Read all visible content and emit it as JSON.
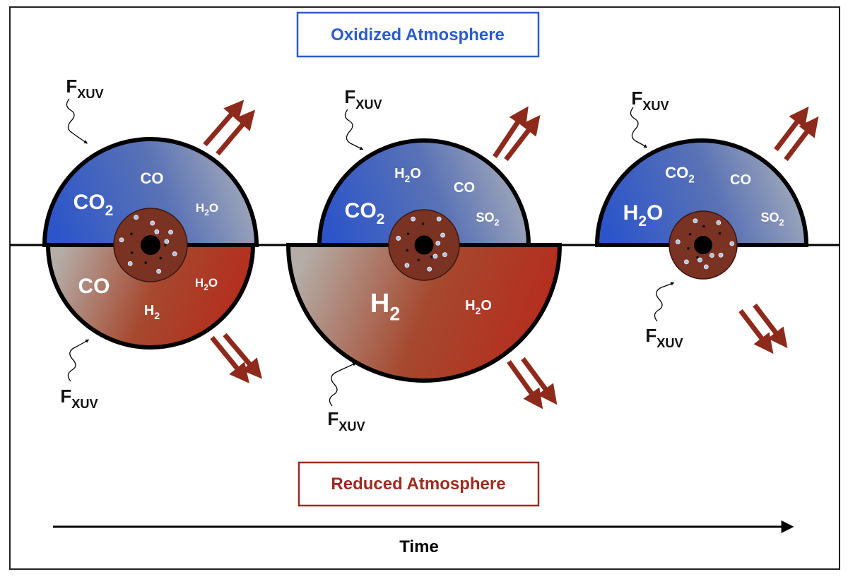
{
  "title_top": "Oxidized Atmosphere",
  "title_bottom": "Reduced Atmosphere",
  "time_label": "Time",
  "flux_labels": [
    {
      "text": "F",
      "sub": "XUV"
    },
    {
      "text": "F",
      "sub": "XUV"
    },
    {
      "text": "F",
      "sub": "XUV"
    },
    {
      "text": "F",
      "sub": "XUV"
    },
    {
      "text": "F",
      "sub": "XUV"
    },
    {
      "text": "F",
      "sub": "XUV"
    }
  ],
  "planets": [
    {
      "upper": [
        {
          "text": "CO",
          "sub": "2"
        },
        {
          "text": "CO"
        },
        {
          "text": "H",
          "sub": "2",
          "rest": "O"
        }
      ],
      "lower": [
        {
          "text": "CO"
        },
        {
          "text": "H",
          "sub": "2"
        },
        {
          "text": "H",
          "sub": "2",
          "rest": "O"
        }
      ]
    },
    {
      "upper": [
        {
          "text": "H",
          "sub": "2",
          "rest": "O"
        },
        {
          "text": "CO"
        },
        {
          "text": "CO",
          "sub": "2"
        },
        {
          "text": "SO",
          "sub": "2"
        }
      ],
      "lower": [
        {
          "text": "H",
          "sub": "2"
        },
        {
          "text": "H",
          "sub": "2",
          "rest": "O"
        }
      ]
    },
    {
      "upper": [
        {
          "text": "CO",
          "sub": "2"
        },
        {
          "text": "CO"
        },
        {
          "text": "H",
          "sub": "2",
          "rest": "O"
        },
        {
          "text": "SO",
          "sub": "2"
        }
      ]
    }
  ]
}
